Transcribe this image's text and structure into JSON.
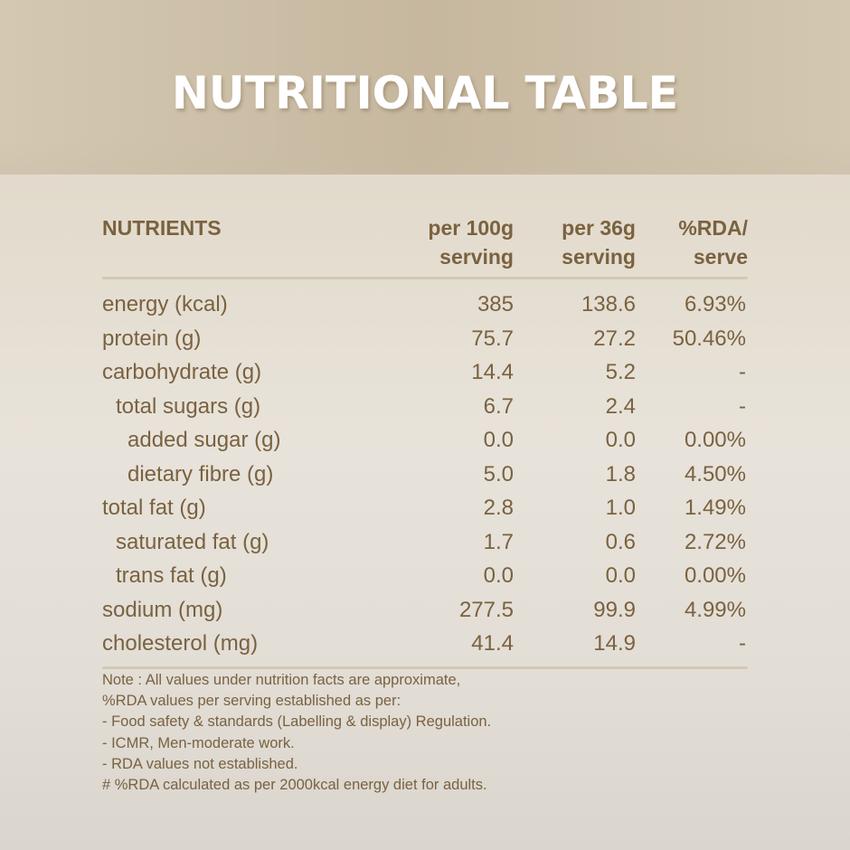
{
  "header": {
    "title": "NUTRITIONAL TABLE"
  },
  "table": {
    "columns": {
      "nutrients": "NUTRIENTS",
      "per100_l1": "per 100g",
      "per100_l2": "serving",
      "per36_l1": "per 36g",
      "per36_l2": "serving",
      "rda_l1": "%RDA/",
      "rda_l2": "serve"
    },
    "rows": [
      {
        "name": "energy (kcal)",
        "indent": 0,
        "per100g": "385",
        "per36g": "138.6",
        "rda": "6.93%"
      },
      {
        "name": "protein (g)",
        "indent": 0,
        "per100g": "75.7",
        "per36g": "27.2",
        "rda": "50.46%"
      },
      {
        "name": "carbohydrate (g)",
        "indent": 0,
        "per100g": "14.4",
        "per36g": "5.2",
        "rda": "-"
      },
      {
        "name": "total sugars (g)",
        "indent": 1,
        "per100g": "6.7",
        "per36g": "2.4",
        "rda": "-"
      },
      {
        "name": "added sugar (g)",
        "indent": 2,
        "per100g": "0.0",
        "per36g": "0.0",
        "rda": "0.00%"
      },
      {
        "name": "dietary fibre (g)",
        "indent": 2,
        "per100g": "5.0",
        "per36g": "1.8",
        "rda": "4.50%"
      },
      {
        "name": "total fat (g)",
        "indent": 0,
        "per100g": "2.8",
        "per36g": "1.0",
        "rda": "1.49%"
      },
      {
        "name": "saturated fat (g)",
        "indent": 1,
        "per100g": "1.7",
        "per36g": "0.6",
        "rda": "2.72%"
      },
      {
        "name": "trans fat (g)",
        "indent": 1,
        "per100g": "0.0",
        "per36g": "0.0",
        "rda": "0.00%"
      },
      {
        "name": "sodium (mg)",
        "indent": 0,
        "per100g": "277.5",
        "per36g": "99.9",
        "rda": "4.99%"
      },
      {
        "name": "cholesterol (mg)",
        "indent": 0,
        "per100g": "41.4",
        "per36g": "14.9",
        "rda": "-"
      }
    ]
  },
  "notes": [
    "Note : All values under nutrition facts are approximate,",
    "%RDA values per serving established as per:",
    "- Food safety & standards (Labelling & display) Regulation.",
    "- ICMR, Men-moderate work.",
    "- RDA values not established.",
    "# %RDA calculated as per 2000kcal energy diet for adults."
  ],
  "colors": {
    "text_brown": "#7a6240",
    "title_white": "#ffffff",
    "header_bg": "#c6b79e",
    "rule": "#d4c8b2"
  }
}
